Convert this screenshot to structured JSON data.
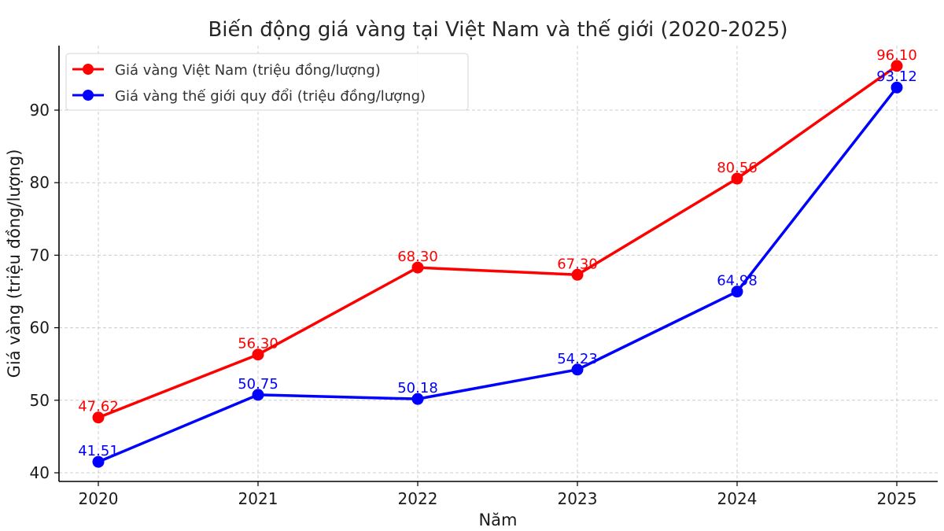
{
  "chart_data": {
    "type": "line",
    "title": "Biến động giá vàng tại Việt Nam và thế giới (2020-2025)",
    "xlabel": "Năm",
    "ylabel": "Giá vàng (triệu đồng/lượng)",
    "categories": [
      "2020",
      "2021",
      "2022",
      "2023",
      "2024",
      "2025"
    ],
    "yticks": [
      40,
      50,
      60,
      70,
      80,
      90
    ],
    "ylim": [
      39,
      99
    ],
    "grid": true,
    "legend_position": "upper left",
    "series": [
      {
        "name": "Giá vàng Việt Nam (triệu đồng/lượng)",
        "color": "#ff0000",
        "values": [
          47.62,
          56.3,
          68.3,
          67.3,
          80.56,
          96.1
        ],
        "labels": [
          "47.62",
          "56.30",
          "68.30",
          "67.30",
          "80.56",
          "96.10"
        ]
      },
      {
        "name": "Giá vàng thế giới quy đổi (triệu đồng/lượng)",
        "color": "#0000ff",
        "values": [
          41.51,
          50.75,
          50.18,
          54.23,
          64.98,
          93.12
        ],
        "labels": [
          "41.51",
          "50.75",
          "50.18",
          "54.23",
          "64.98",
          "93.12"
        ]
      }
    ]
  }
}
